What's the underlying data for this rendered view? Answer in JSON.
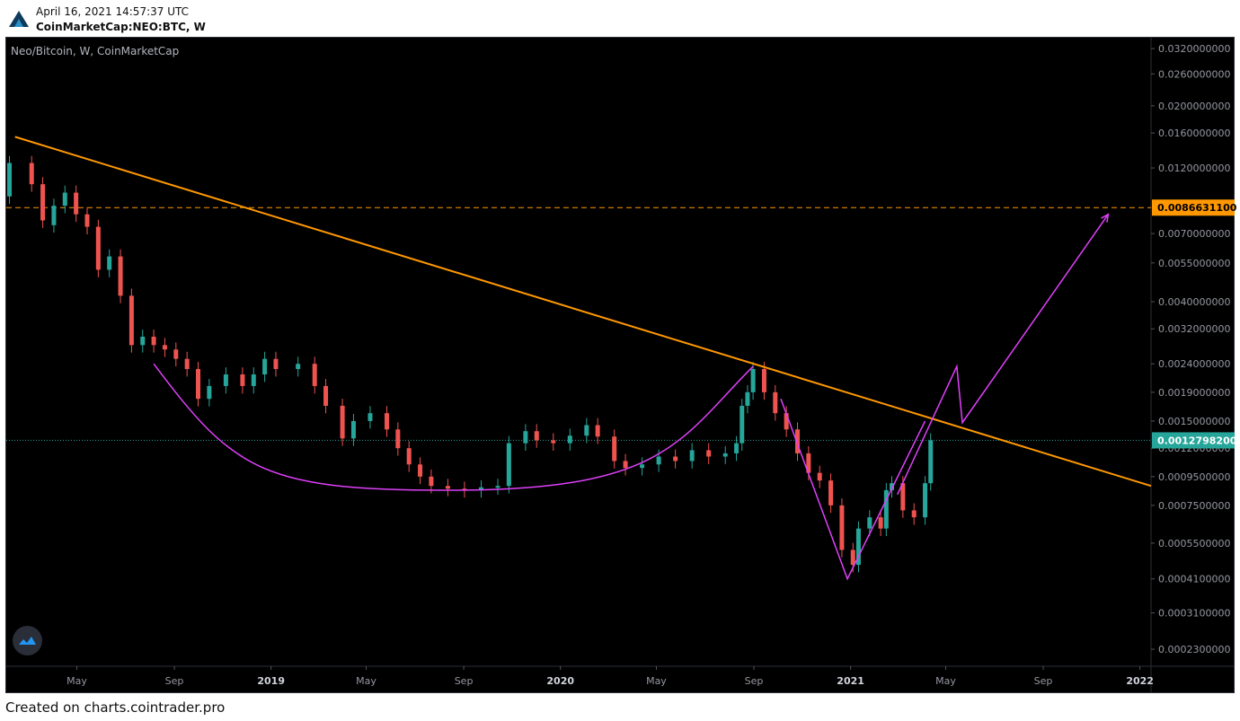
{
  "header": {
    "date": "April 16, 2021 14:57:37 UTC",
    "symbol": "CoinMarketCap:NEO:BTC, W"
  },
  "chart_title": "Neo/Bitcoin, W, CoinMarketCap",
  "footer": {
    "created_text": "Created on charts.cointrader.pro"
  },
  "colors": {
    "background": "#000000",
    "up_candle": "#26a69a",
    "down_candle": "#ef5350",
    "trendline": "#ff9800",
    "pattern": "#e040fb",
    "price_line": "#26a69a",
    "level_line": "#ff9800"
  },
  "icons": {
    "logo": "cointrader-logo-icon",
    "badge": "tradingview-badge-icon"
  },
  "chart_data": {
    "type": "candlestick",
    "scale": "log",
    "ylim": [
      0.0002,
      0.035
    ],
    "xlim": [
      "2018-02-01",
      "2022-01-15"
    ],
    "xticks": [
      "May",
      "Sep",
      "2019",
      "May",
      "Sep",
      "2020",
      "May",
      "Sep",
      "2021",
      "May",
      "Sep",
      "2022"
    ],
    "y_ticks": [
      "0.0320000000",
      "0.0260000000",
      "0.0200000000",
      "0.0160000000",
      "0.0120000000",
      "0.0070000000",
      "0.0055000000",
      "0.0040000000",
      "0.0032000000",
      "0.0024000000",
      "0.0019000000",
      "0.0015000000",
      "0.0012000000",
      "0.0009500000",
      "0.0007500000",
      "0.0005500000",
      "0.0004100000",
      "0.0003100000",
      "0.0002300000"
    ],
    "y_tick_values": [
      0.032,
      0.026,
      0.02,
      0.016,
      0.012,
      0.007,
      0.0055,
      0.004,
      0.0032,
      0.0024,
      0.0019,
      0.0015,
      0.0012,
      0.00095,
      0.00075,
      0.00055,
      0.00041,
      0.00031,
      0.00023
    ],
    "current_price": {
      "label": "0.0012798200",
      "value": 0.00127982
    },
    "level": {
      "label": "0.0086631100",
      "value": 0.00866311
    },
    "series": [
      {
        "name": "Neo/Bitcoin",
        "points": [
          [
            "2018-02-05",
            0.0095,
            0.0125
          ],
          [
            "2018-03-05",
            0.0125,
            0.0105
          ],
          [
            "2018-03-19",
            0.0105,
            0.0078
          ],
          [
            "2018-04-02",
            0.0075,
            0.0088
          ],
          [
            "2018-04-16",
            0.0088,
            0.0098
          ],
          [
            "2018-04-30",
            0.0098,
            0.0082
          ],
          [
            "2018-05-14",
            0.0082,
            0.0074
          ],
          [
            "2018-05-28",
            0.0074,
            0.0052
          ],
          [
            "2018-06-11",
            0.0052,
            0.0058
          ],
          [
            "2018-06-25",
            0.0058,
            0.0042
          ],
          [
            "2018-07-09",
            0.0042,
            0.0028
          ],
          [
            "2018-07-23",
            0.0028,
            0.003
          ],
          [
            "2018-08-06",
            0.003,
            0.0028
          ],
          [
            "2018-08-20",
            0.0028,
            0.0027
          ],
          [
            "2018-09-03",
            0.0027,
            0.0025
          ],
          [
            "2018-09-17",
            0.0025,
            0.0023
          ],
          [
            "2018-10-01",
            0.0023,
            0.0018
          ],
          [
            "2018-10-15",
            0.0018,
            0.002
          ],
          [
            "2018-11-05",
            0.002,
            0.0022
          ],
          [
            "2018-11-26",
            0.0022,
            0.002
          ],
          [
            "2018-12-10",
            0.002,
            0.0022
          ],
          [
            "2018-12-24",
            0.0022,
            0.0025
          ],
          [
            "2019-01-07",
            0.0025,
            0.0023
          ],
          [
            "2019-02-04",
            0.0023,
            0.0024
          ],
          [
            "2019-02-25",
            0.0024,
            0.002
          ],
          [
            "2019-03-11",
            0.002,
            0.0017
          ],
          [
            "2019-04-01",
            0.0017,
            0.0013
          ],
          [
            "2019-04-15",
            0.0013,
            0.0015
          ],
          [
            "2019-05-06",
            0.0015,
            0.0016
          ],
          [
            "2019-05-27",
            0.0016,
            0.0014
          ],
          [
            "2019-06-10",
            0.0014,
            0.0012
          ],
          [
            "2019-06-24",
            0.0012,
            0.00105
          ],
          [
            "2019-07-08",
            0.00105,
            0.00095
          ],
          [
            "2019-07-22",
            0.00095,
            0.00088
          ],
          [
            "2019-08-12",
            0.00088,
            0.00086
          ],
          [
            "2019-09-02",
            0.00086,
            0.00085
          ],
          [
            "2019-09-23",
            0.00085,
            0.00087
          ],
          [
            "2019-10-14",
            0.00087,
            0.00088
          ],
          [
            "2019-10-28",
            0.00088,
            0.00125
          ],
          [
            "2019-11-18",
            0.00125,
            0.00138
          ],
          [
            "2019-12-02",
            0.00138,
            0.00128
          ],
          [
            "2019-12-23",
            0.00128,
            0.00125
          ],
          [
            "2020-01-13",
            0.00125,
            0.00133
          ],
          [
            "2020-02-03",
            0.00133,
            0.00145
          ],
          [
            "2020-02-17",
            0.00145,
            0.00132
          ],
          [
            "2020-03-09",
            0.00132,
            0.00108
          ],
          [
            "2020-03-23",
            0.00108,
            0.00102
          ],
          [
            "2020-04-13",
            0.00102,
            0.00105
          ],
          [
            "2020-05-04",
            0.00105,
            0.00112
          ],
          [
            "2020-05-25",
            0.00112,
            0.00108
          ],
          [
            "2020-06-15",
            0.00108,
            0.00118
          ],
          [
            "2020-07-06",
            0.00118,
            0.00112
          ],
          [
            "2020-07-27",
            0.00112,
            0.00115
          ],
          [
            "2020-08-10",
            0.00115,
            0.00125
          ],
          [
            "2020-08-17",
            0.00125,
            0.0017
          ],
          [
            "2020-08-24",
            0.0017,
            0.0019
          ],
          [
            "2020-08-31",
            0.0019,
            0.0023
          ],
          [
            "2020-09-14",
            0.0023,
            0.0019
          ],
          [
            "2020-09-28",
            0.0019,
            0.0016
          ],
          [
            "2020-10-12",
            0.0016,
            0.0014
          ],
          [
            "2020-10-26",
            0.0014,
            0.00115
          ],
          [
            "2020-11-09",
            0.00115,
            0.00098
          ],
          [
            "2020-11-23",
            0.00098,
            0.00092
          ],
          [
            "2020-12-07",
            0.00092,
            0.00075
          ],
          [
            "2020-12-21",
            0.00075,
            0.00052
          ],
          [
            "2021-01-04",
            0.00052,
            0.00046
          ],
          [
            "2021-01-11",
            0.00046,
            0.00062
          ],
          [
            "2021-01-25",
            0.00062,
            0.00068
          ],
          [
            "2021-02-08",
            0.00068,
            0.00062
          ],
          [
            "2021-02-15",
            0.00062,
            0.00085
          ],
          [
            "2021-02-22",
            0.00085,
            0.0009
          ],
          [
            "2021-03-08",
            0.0009,
            0.00072
          ],
          [
            "2021-03-22",
            0.00072,
            0.00068
          ],
          [
            "2021-04-05",
            0.00068,
            0.0009
          ],
          [
            "2021-04-12",
            0.0009,
            0.00128
          ]
        ]
      }
    ],
    "annotations": {
      "trendline": [
        [
          "2018-02-12",
          0.0155
        ],
        [
          "2022-01-15",
          0.00088
        ]
      ],
      "rounded_bottom_arc": {
        "start": [
          "2018-08-06",
          0.0024
        ],
        "bottom": [
          "2019-09-02",
          0.00085
        ],
        "end": [
          "2020-08-31",
          0.00235
        ]
      },
      "v_pattern": [
        [
          "2020-10-05",
          0.0018
        ],
        [
          "2020-12-28",
          0.00041
        ],
        [
          "2021-04-05",
          0.0015
        ]
      ],
      "projection_path": [
        [
          "2021-03-01",
          0.00082
        ],
        [
          "2021-05-15",
          0.00235
        ],
        [
          "2021-05-22",
          0.00148
        ],
        [
          "2021-11-22",
          0.0082
        ]
      ]
    }
  }
}
